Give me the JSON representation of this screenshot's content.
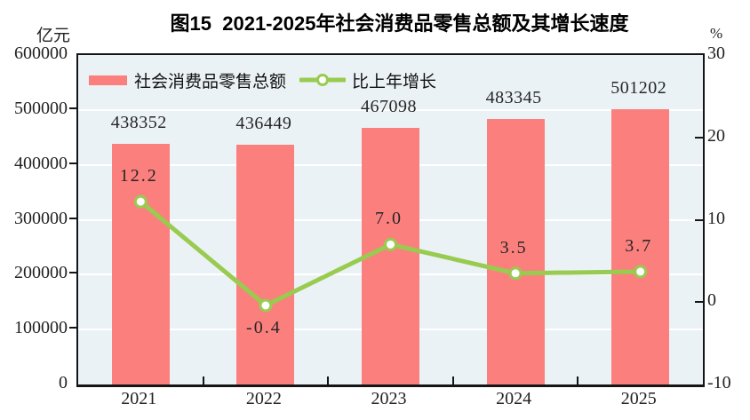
{
  "title": "图15  2021-2025年社会消费品零售总额及其增长速度",
  "left_axis_unit": "亿元",
  "right_axis_unit": "%",
  "legend": {
    "bar_label": "社会消费品零售总额",
    "line_label": "比上年增长"
  },
  "chart_data": {
    "type": "bar+line combo",
    "title": "图15  2021-2025年社会消费品零售总额及其增长速度",
    "categories": [
      "2021",
      "2022",
      "2023",
      "2024",
      "2025"
    ],
    "series": [
      {
        "name": "社会消费品零售总额",
        "type": "bar",
        "axis": "left",
        "values": [
          438352,
          436449,
          467098,
          483345,
          501202
        ]
      },
      {
        "name": "比上年增长",
        "type": "line",
        "axis": "right",
        "values": [
          12.2,
          -0.4,
          7.0,
          3.5,
          3.7
        ]
      }
    ],
    "left_axis": {
      "unit": "亿元",
      "min": 0,
      "max": 600000,
      "tick_step": 100000,
      "ticks": [
        0,
        100000,
        200000,
        300000,
        400000,
        500000,
        600000
      ]
    },
    "right_axis": {
      "unit": "%",
      "min": -10,
      "max": 30,
      "tick_step": 10,
      "ticks": [
        -10,
        0,
        10,
        20,
        30
      ]
    },
    "grid": "horizontal white gridlines at each left-axis step",
    "legend_position": "top-left inside plot area",
    "colors": {
      "bar": "#FB807D",
      "line": "#98CB4F",
      "marker_fill": "#FFFFFF",
      "plot_bg": "#EBF2F6",
      "gridline": "#FFFFFF",
      "axis": "#151515",
      "text": "#222222"
    }
  }
}
